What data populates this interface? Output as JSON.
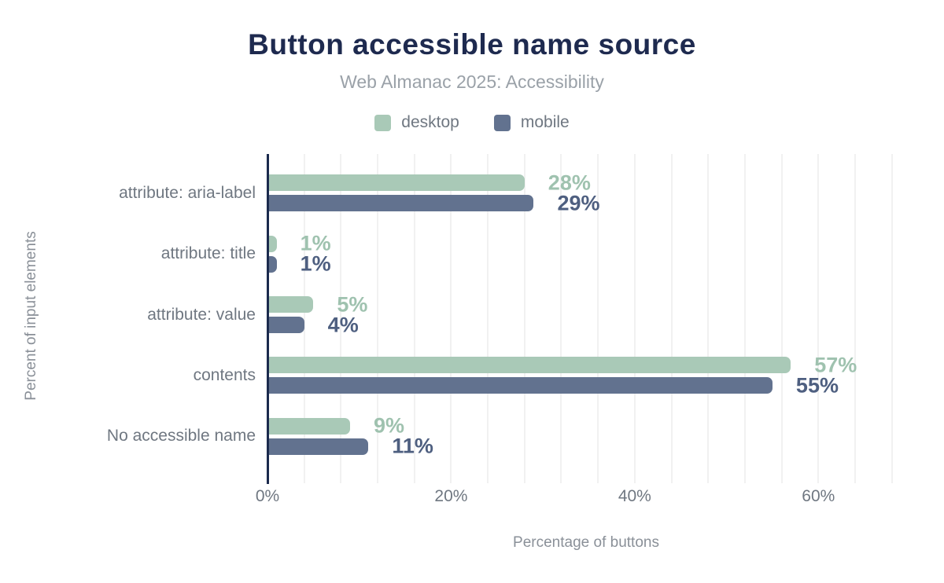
{
  "header": {
    "title": "Button accessible name source",
    "subtitle": "Web Almanac 2025: Accessibility"
  },
  "colors": {
    "title": "#1e2a4f",
    "subtitle": "#9aa1a8",
    "axis_line": "#1b2a4d",
    "gridline": "#f1f1f1",
    "label_gray": "#6f7781"
  },
  "legend": [
    {
      "label": "desktop",
      "color": "#a9c9b7"
    },
    {
      "label": "mobile",
      "color": "#62728f"
    }
  ],
  "chart_data": {
    "type": "bar",
    "orientation": "horizontal",
    "title": "Button accessible name source",
    "subtitle": "Web Almanac 2025: Accessibility",
    "categories": [
      "attribute: aria-label",
      "attribute: title",
      "attribute: value",
      "contents",
      "No accessible name"
    ],
    "series": [
      {
        "name": "desktop",
        "values": [
          28,
          1,
          5,
          57,
          9
        ],
        "color": "#a9c9b7",
        "label_color": "#9fc2af"
      },
      {
        "name": "mobile",
        "values": [
          29,
          1,
          4,
          55,
          11
        ],
        "color": "#62728f",
        "label_color": "#4e5f80"
      }
    ],
    "value_suffix": "%",
    "xlabel": "Percentage of buttons",
    "ylabel": "Percent of input elements",
    "x_ticks": [
      {
        "value": 0,
        "label": "0%"
      },
      {
        "value": 20,
        "label": "20%"
      },
      {
        "value": 40,
        "label": "40%"
      },
      {
        "value": 60,
        "label": "60%"
      }
    ],
    "xlim": [
      0,
      69.4
    ],
    "gridline_step": 4,
    "grid": true,
    "legend_position": "top"
  }
}
